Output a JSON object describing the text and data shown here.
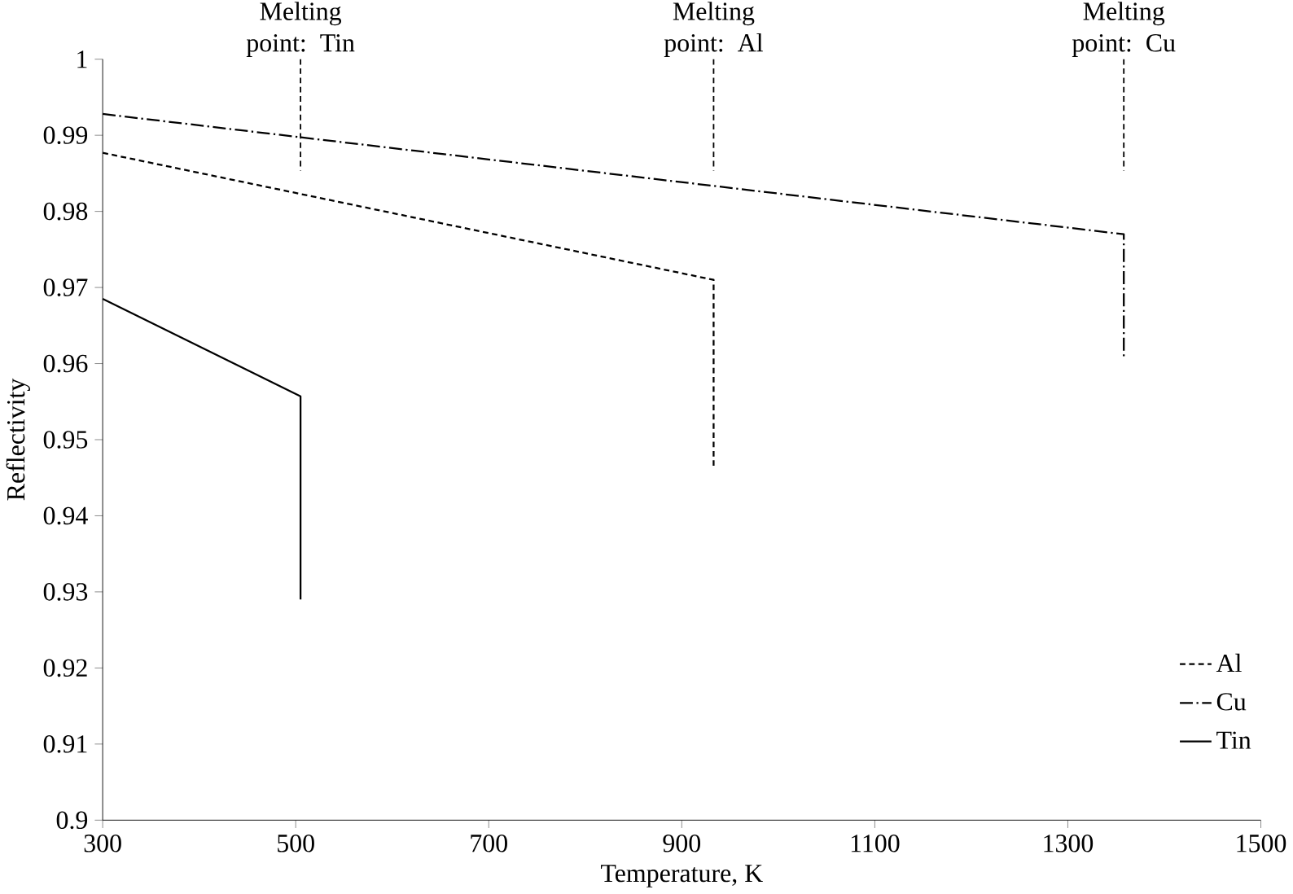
{
  "chart_data": {
    "type": "line",
    "xlabel": "Temperature, K",
    "ylabel": "Reflectivity",
    "xlim": [
      300,
      1500
    ],
    "xticks": [
      300,
      500,
      700,
      900,
      1100,
      1300,
      1500
    ],
    "ylim": [
      0.9,
      1
    ],
    "yticks": [
      0.9,
      0.91,
      0.92,
      0.93,
      0.94,
      0.95,
      0.96,
      0.97,
      0.98,
      0.99,
      1
    ],
    "series": [
      {
        "name": "Al",
        "color": "#000000",
        "line_style": "dashed",
        "x": [
          300,
          933,
          933
        ],
        "values": [
          0.9877,
          0.971,
          0.9465
        ]
      },
      {
        "name": "Cu",
        "color": "#000000",
        "line_style": "dashdot",
        "x": [
          300,
          1358,
          1358
        ],
        "values": [
          0.9928,
          0.977,
          0.9605
        ]
      },
      {
        "name": "Tin",
        "color": "#000000",
        "line_style": "solid",
        "x": [
          300,
          505,
          505
        ],
        "values": [
          0.9685,
          0.9557,
          0.929
        ]
      }
    ],
    "ref_lines": [
      {
        "axis": "x",
        "value": 505,
        "label": "Melting point: Tin",
        "line_style": "dashed"
      },
      {
        "axis": "x",
        "value": 933,
        "label": "Melting point: Al",
        "line_style": "dashed"
      },
      {
        "axis": "x",
        "value": 1358,
        "label": "Melting point: Cu",
        "line_style": "dashed"
      }
    ],
    "grid": false,
    "legend": "bottom right",
    "marker": "none"
  }
}
